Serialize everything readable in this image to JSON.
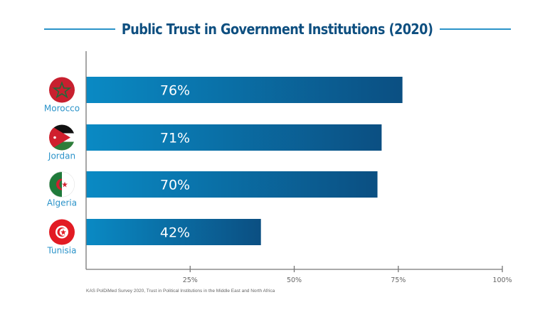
{
  "chart_data": {
    "type": "bar",
    "orientation": "horizontal",
    "title": "Public Trust in Government Institutions (2020)",
    "categories": [
      "Morocco",
      "Jordan",
      "Algeria",
      "Tunisia"
    ],
    "values": [
      76,
      71,
      70,
      42
    ],
    "data_labels": [
      "76%",
      "71%",
      "70%",
      "42%"
    ],
    "xlim": [
      0,
      100
    ],
    "x_ticks": [
      25,
      50,
      75,
      100
    ],
    "x_tick_labels": [
      "25%",
      "50%",
      "75%",
      "100%"
    ],
    "grid": false,
    "icons": [
      "morocco-flag",
      "jordan-flag",
      "algeria-flag",
      "tunisia-flag"
    ],
    "colors": {
      "bar_start": "#0a8ac4",
      "bar_end": "#0b4f82",
      "title": "#0e4f80",
      "label": "#2b93c9",
      "axis": "#777777"
    }
  },
  "source": "KAS PolDiMed Survey 2020, Trust in Political Institutions in the Middle East and North Africa"
}
